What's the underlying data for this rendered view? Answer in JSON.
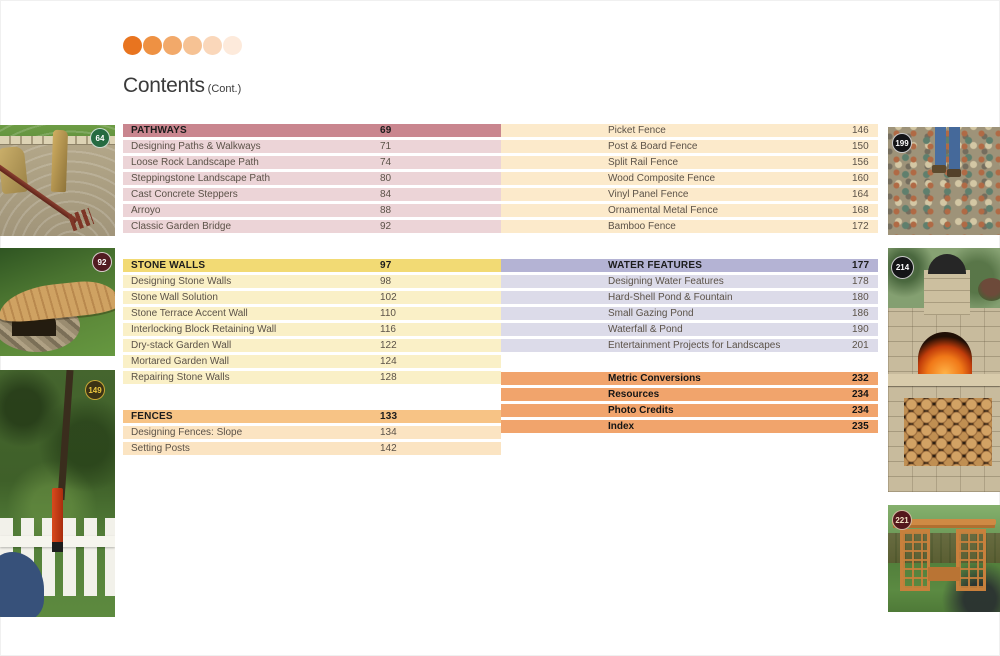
{
  "page": {
    "title": "Contents",
    "subtitle": "(Cont.)"
  },
  "progress_dots": {
    "colors": [
      "#e8741f",
      "#ee9143",
      "#f2a96a",
      "#f6c294",
      "#fad7ba",
      "#fdeadb"
    ]
  },
  "toc": {
    "left_sections": [
      {
        "name": "pathways",
        "header_bg": "#c9868f",
        "row_bg": "#ecd4d7",
        "rows": [
          {
            "label": "PATHWAYS",
            "page": "69",
            "header": true
          },
          {
            "label": "Designing Paths & Walkways",
            "page": "71"
          },
          {
            "label": "Loose Rock Landscape Path",
            "page": "74"
          },
          {
            "label": "Steppingstone Landscape Path",
            "page": "80"
          },
          {
            "label": "Cast Concrete Steppers",
            "page": "84"
          },
          {
            "label": "Arroyo",
            "page": "88"
          },
          {
            "label": "Classic Garden Bridge",
            "page": "92"
          }
        ]
      },
      {
        "name": "stone-walls",
        "header_bg": "#f2da74",
        "row_bg": "#faf0c7",
        "rows": [
          {
            "label": "STONE WALLS",
            "page": "97",
            "header": true
          },
          {
            "label": "Designing Stone Walls",
            "page": "98"
          },
          {
            "label": "Stone Wall Solution",
            "page": "102"
          },
          {
            "label": "Stone Terrace Accent Wall",
            "page": "110"
          },
          {
            "label": "Interlocking Block Retaining Wall",
            "page": "116"
          },
          {
            "label": "Dry-stack Garden Wall",
            "page": "122"
          },
          {
            "label": "Mortared Garden Wall",
            "page": "124"
          },
          {
            "label": "Repairing Stone Walls",
            "page": "128"
          }
        ]
      },
      {
        "name": "fences",
        "header_bg": "#f7c385",
        "row_bg": "#fbe4c2",
        "rows": [
          {
            "label": "FENCES",
            "page": "133",
            "header": true
          },
          {
            "label": "Designing Fences: Slope",
            "page": "134"
          },
          {
            "label": "Setting Posts",
            "page": "142"
          }
        ]
      }
    ],
    "right_sections": [
      {
        "name": "fences-continued",
        "row_bg": "#fceacb",
        "rows": [
          {
            "label": "Picket Fence",
            "page": "146"
          },
          {
            "label": "Post & Board Fence",
            "page": "150"
          },
          {
            "label": "Split Rail Fence",
            "page": "156"
          },
          {
            "label": "Wood Composite Fence",
            "page": "160"
          },
          {
            "label": "Vinyl Panel Fence",
            "page": "164"
          },
          {
            "label": "Ornamental Metal Fence",
            "page": "168"
          },
          {
            "label": "Bamboo Fence",
            "page": "172"
          }
        ]
      },
      {
        "name": "water-features",
        "header_bg": "#b4b3d4",
        "row_bg": "#dcdbe9",
        "rows": [
          {
            "label": "WATER FEATURES",
            "page": "177",
            "header": true
          },
          {
            "label": "Designing Water Features",
            "page": "178"
          },
          {
            "label": "Hard-Shell Pond & Fountain",
            "page": "180"
          },
          {
            "label": "Small Gazing Pond",
            "page": "186"
          },
          {
            "label": "Waterfall & Pond",
            "page": "190"
          },
          {
            "label": "Entertainment Projects for Landscapes",
            "page": "201"
          }
        ]
      },
      {
        "name": "back-matter",
        "row_bg": "#f1a46c",
        "bold": true,
        "rows": [
          {
            "label": "Metric Conversions",
            "page": "232"
          },
          {
            "label": "Resources",
            "page": "234"
          },
          {
            "label": "Photo Credits",
            "page": "234"
          },
          {
            "label": "Index",
            "page": "235"
          }
        ]
      }
    ]
  },
  "thumbnails": {
    "left": [
      {
        "badge": "64",
        "subject": "zen garden raked gravel with standing stones"
      },
      {
        "badge": "92",
        "subject": "classic garden bridge over dry creek"
      },
      {
        "badge": "149",
        "subject": "white picket fence with post level"
      }
    ],
    "right": [
      {
        "badge": "199",
        "subject": "raking gravel in rocky stream bed"
      },
      {
        "badge": "214",
        "subject": "outdoor stone pizza oven with firewood"
      },
      {
        "badge": "221",
        "subject": "cedar garden arbor with trellis panels"
      }
    ]
  }
}
